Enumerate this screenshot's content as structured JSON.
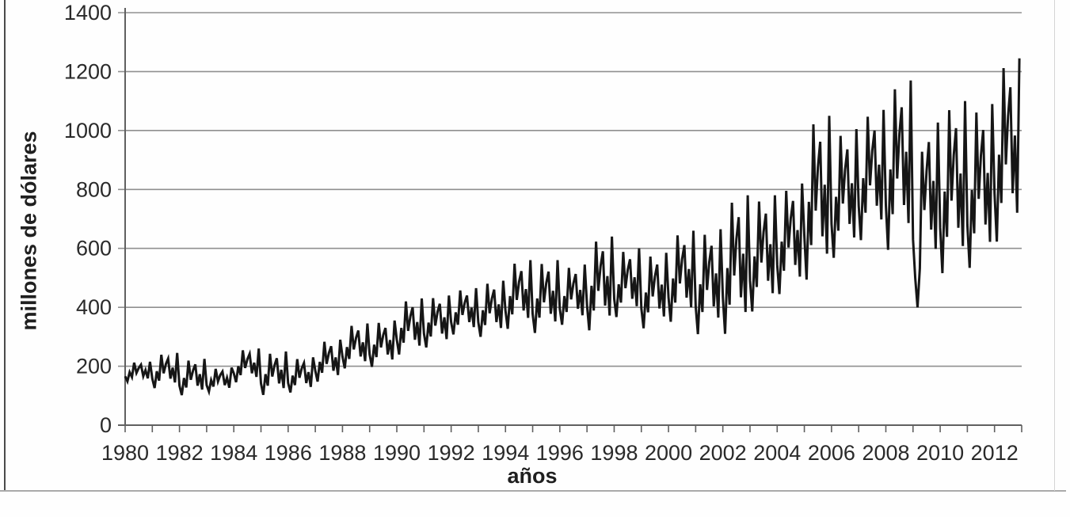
{
  "chart_data": {
    "type": "line",
    "title": "",
    "xlabel": "años",
    "ylabel": "millones de dólares",
    "xlim": [
      1980,
      2013
    ],
    "ylim": [
      0,
      1400
    ],
    "y_ticks": [
      0,
      200,
      400,
      600,
      800,
      1000,
      1200,
      1400
    ],
    "x_tick_years": [
      1980,
      1982,
      1984,
      1986,
      1988,
      1990,
      1992,
      1994,
      1996,
      1998,
      2000,
      2002,
      2004,
      2006,
      2008,
      2010,
      2012
    ],
    "minor_x_tick_every_years": 1,
    "grid": true,
    "legend_position": "none",
    "line_color": "#161616",
    "grid_color": "#909090",
    "axis_color": "#606060",
    "text_color": "#2a2a2a",
    "series": [
      {
        "name": "millones de dólares",
        "start_year": 1980,
        "frequency": "monthly",
        "values": [
          166,
          149,
          180,
          163,
          212,
          177,
          194,
          205,
          166,
          187,
          159,
          215,
          158,
          126,
          183,
          151,
          239,
          176,
          208,
          226,
          158,
          195,
          145,
          245,
          134,
          102,
          160,
          128,
          219,
          154,
          186,
          206,
          134,
          173,
          121,
          225,
          136,
          114,
          153,
          131,
          191,
          148,
          170,
          182,
          136,
          161,
          127,
          195,
          176,
          146,
          200,
          170,
          254,
          194,
          224,
          242,
          176,
          212,
          164,
          260,
          142,
          103,
          173,
          134,
          242,
          165,
          204,
          227,
          142,
          188,
          126,
          250,
          143,
          111,
          168,
          136,
          224,
          161,
          193,
          211,
          143,
          180,
          130,
          230,
          185,
          148,
          215,
          178,
          283,
          208,
          245,
          268,
          185,
          230,
          170,
          290,
          233,
          193,
          265,
          225,
          337,
          257,
          297,
          321,
          233,
          281,
          217,
          345,
          240,
          198,
          273,
          231,
          347,
          264,
          306,
          330,
          240,
          289,
          223,
          355,
          290,
          240,
          330,
          280,
          420,
          320,
          370,
          400,
          290,
          350,
          270,
          430,
          311,
          264,
          348,
          301,
          431,
          338,
          385,
          412,
          311,
          366,
          292,
          440,
          350,
          308,
          383,
          341,
          457,
          374,
          416,
          440,
          350,
          399,
          333,
          465,
          350,
          300,
          390,
          340,
          480,
          380,
          430,
          460,
          350,
          410,
          330,
          490,
          389,
          327,
          438,
          376,
          548,
          425,
          487,
          523,
          389,
          462,
          364,
          560,
          378,
          313,
          430,
          365,
          547,
          417,
          482,
          521,
          378,
          456,
          352,
          560,
          395,
          341,
          438,
          384,
          534,
          427,
          481,
          513,
          395,
          459,
          373,
          545,
          406,
          322,
          473,
          389,
          623,
          456,
          540,
          590,
          406,
          506,
          372,
          640,
          429,
          367,
          478,
          416,
          588,
          465,
          527,
          563,
          429,
          502,
          404,
          600,
          396,
          329,
          450,
          383,
          572,
          437,
          504,
          545,
          396,
          477,
          369,
          585,
          433,
          351,
          498,
          416,
          644,
          481,
          563,
          611,
          433,
          530,
          400,
          660,
          403,
          309,
          478,
          384,
          646,
          459,
          553,
          609,
          403,
          515,
          365,
          665,
          434,
          310,
          533,
          409,
          755,
          508,
          632,
          706,
          434,
          582,
          384,
          780,
          490,
          386,
          573,
          469,
          759,
          552,
          656,
          718,
          490,
          614,
          448,
          780,
          544,
          445,
          623,
          524,
          795,
          603,
          702,
          761,
          544,
          662,
          504,
          820,
          641,
          494,
          758,
          611,
          1021,
          728,
          875,
          962,
          641,
          816,
          582,
          1050,
          683,
          568,
          775,
          660,
          982,
          752,
          867,
          936,
          683,
          821,
          637,
          1005,
          745,
          628,
          838,
          721,
          1047,
          814,
          931,
          1000,
          745,
          884,
          698,
          1070,
          747,
          595,
          868,
          716,
          1140,
          837,
          989,
          1079,
          747,
          928,
          686,
          1170,
          631,
          499,
          400,
          532,
          928,
          730,
          862,
          961,
          664,
          829,
          598,
          1027,
          670,
          516,
          793,
          639,
          1069,
          762,
          916,
          1008,
          670,
          854,
          608,
          1100,
          681,
          534,
          798,
          651,
          1061,
          768,
          915,
          1002,
          681,
          856,
          622,
          1090,
          787,
          623,
          918,
          754,
          1212,
          885,
          1049,
          1147,
          787,
          983,
          721,
          1245
        ]
      }
    ]
  }
}
